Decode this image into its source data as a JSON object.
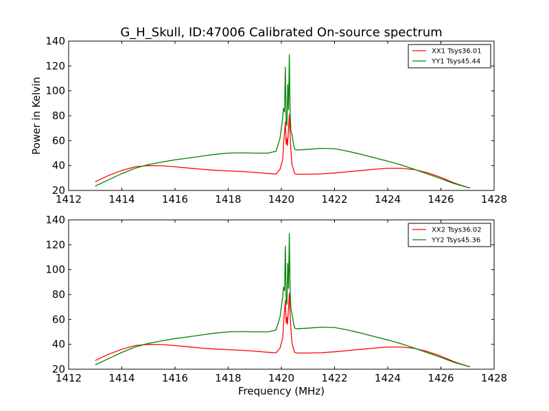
{
  "title": "G_H_Skull, ID:47006 Calibrated On-source spectrum",
  "colors": {
    "xx": "#ff0000",
    "yy": "#008000"
  },
  "chart_data": [
    {
      "type": "line",
      "xlabel": "",
      "ylabel": "Power in Kelvin",
      "xlim": [
        1412,
        1428
      ],
      "ylim": [
        20,
        140
      ],
      "xticks": [
        "1412",
        "1414",
        "1416",
        "1418",
        "1420",
        "1422",
        "1424",
        "1426",
        "1428"
      ],
      "yticks": [
        "20",
        "40",
        "60",
        "80",
        "100",
        "120",
        "140"
      ],
      "legend_position": "top-right",
      "series": [
        {
          "name": "XX1 Tsys36.01",
          "color": "#ff0000",
          "x": [
            1413.0,
            1413.5,
            1414.0,
            1414.5,
            1415.0,
            1415.5,
            1416.0,
            1416.5,
            1417.0,
            1417.5,
            1418.0,
            1418.5,
            1419.0,
            1419.5,
            1419.8,
            1419.95,
            1420.05,
            1420.1,
            1420.15,
            1420.18,
            1420.2,
            1420.23,
            1420.26,
            1420.3,
            1420.33,
            1420.36,
            1420.4,
            1420.45,
            1420.5,
            1420.6,
            1421.0,
            1421.5,
            1422.0,
            1422.5,
            1423.0,
            1423.5,
            1424.0,
            1424.5,
            1425.0,
            1425.5,
            1426.0,
            1426.5,
            1427.0,
            1427.1
          ],
          "y": [
            27,
            32,
            36,
            39,
            40,
            39.8,
            39,
            38,
            37,
            36.2,
            35.7,
            35.2,
            34.5,
            33.6,
            33.2,
            37,
            45,
            62,
            75,
            57,
            62,
            56,
            66,
            81,
            64,
            52,
            41,
            37,
            33.5,
            33,
            33,
            33.3,
            34,
            35,
            36,
            37,
            37.8,
            37.8,
            36.8,
            34.2,
            30.5,
            26,
            22.5,
            22
          ]
        },
        {
          "name": "YY1 Tsys45.44",
          "color": "#008000",
          "x": [
            1413.0,
            1413.5,
            1414.0,
            1414.5,
            1415.0,
            1415.5,
            1416.0,
            1416.5,
            1417.0,
            1417.5,
            1418.0,
            1418.5,
            1419.0,
            1419.5,
            1419.8,
            1419.95,
            1420.05,
            1420.08,
            1420.12,
            1420.15,
            1420.18,
            1420.21,
            1420.24,
            1420.27,
            1420.3,
            1420.33,
            1420.36,
            1420.4,
            1420.45,
            1420.5,
            1420.6,
            1421.0,
            1421.5,
            1422.0,
            1422.5,
            1423.0,
            1423.5,
            1424.0,
            1424.5,
            1425.0,
            1425.5,
            1426.0,
            1426.5,
            1427.0,
            1427.1
          ],
          "y": [
            23.5,
            28.5,
            33.5,
            37.8,
            40.8,
            42.8,
            44.6,
            46,
            47.5,
            49,
            50,
            50.2,
            50,
            50,
            51.5,
            62,
            78,
            86,
            83,
            119,
            75,
            72,
            105,
            85,
            129,
            82,
            68,
            65,
            58,
            53,
            52.5,
            53,
            53.8,
            53.5,
            51.5,
            49,
            46.2,
            43.5,
            40.5,
            37,
            33.2,
            29.5,
            25.5,
            22.5,
            22
          ]
        }
      ]
    },
    {
      "type": "line",
      "xlabel": "Frequency (MHz)",
      "ylabel": "",
      "xlim": [
        1412,
        1428
      ],
      "ylim": [
        20,
        140
      ],
      "xticks": [
        "1412",
        "1414",
        "1416",
        "1418",
        "1420",
        "1422",
        "1424",
        "1426",
        "1428"
      ],
      "yticks": [
        "20",
        "40",
        "60",
        "80",
        "100",
        "120",
        "140"
      ],
      "legend_position": "top-right",
      "series": [
        {
          "name": "XX2 Tsys36.02",
          "color": "#ff0000",
          "x": [
            1413.0,
            1413.5,
            1414.0,
            1414.5,
            1415.0,
            1415.5,
            1416.0,
            1416.5,
            1417.0,
            1417.5,
            1418.0,
            1418.5,
            1419.0,
            1419.5,
            1419.8,
            1419.95,
            1420.05,
            1420.1,
            1420.15,
            1420.18,
            1420.2,
            1420.23,
            1420.26,
            1420.3,
            1420.33,
            1420.36,
            1420.4,
            1420.45,
            1420.5,
            1420.6,
            1421.0,
            1421.5,
            1422.0,
            1422.5,
            1423.0,
            1423.5,
            1424.0,
            1424.5,
            1425.0,
            1425.5,
            1426.0,
            1426.5,
            1427.0,
            1427.1
          ],
          "y": [
            27,
            32,
            36,
            39,
            40,
            39.8,
            39,
            38,
            37,
            36.2,
            35.7,
            35.2,
            34.5,
            33.6,
            33.2,
            37,
            45,
            62,
            75,
            57,
            62,
            56,
            66,
            81,
            64,
            52,
            41,
            37,
            33.5,
            33,
            33,
            33.3,
            34,
            35,
            36,
            37,
            37.8,
            37.8,
            36.8,
            34.2,
            30.5,
            26,
            22.5,
            22
          ]
        },
        {
          "name": "YY2 Tsys45.36",
          "color": "#008000",
          "x": [
            1413.0,
            1413.5,
            1414.0,
            1414.5,
            1415.0,
            1415.5,
            1416.0,
            1416.5,
            1417.0,
            1417.5,
            1418.0,
            1418.5,
            1419.0,
            1419.5,
            1419.8,
            1419.95,
            1420.05,
            1420.08,
            1420.12,
            1420.15,
            1420.18,
            1420.21,
            1420.24,
            1420.27,
            1420.3,
            1420.33,
            1420.36,
            1420.4,
            1420.45,
            1420.5,
            1420.6,
            1421.0,
            1421.5,
            1422.0,
            1422.5,
            1423.0,
            1423.5,
            1424.0,
            1424.5,
            1425.0,
            1425.5,
            1426.0,
            1426.5,
            1427.0,
            1427.1
          ],
          "y": [
            23.5,
            28.5,
            33.5,
            37.8,
            40.8,
            42.8,
            44.6,
            46,
            47.5,
            49,
            50,
            50.2,
            50,
            50,
            51.5,
            62,
            78,
            86,
            83,
            119,
            75,
            72,
            105,
            85,
            129,
            82,
            68,
            65,
            58,
            53,
            52.5,
            53,
            53.8,
            53.5,
            51.5,
            49,
            46.2,
            43.5,
            40.5,
            37,
            33.2,
            29.5,
            25.5,
            22.5,
            22
          ]
        }
      ]
    }
  ]
}
